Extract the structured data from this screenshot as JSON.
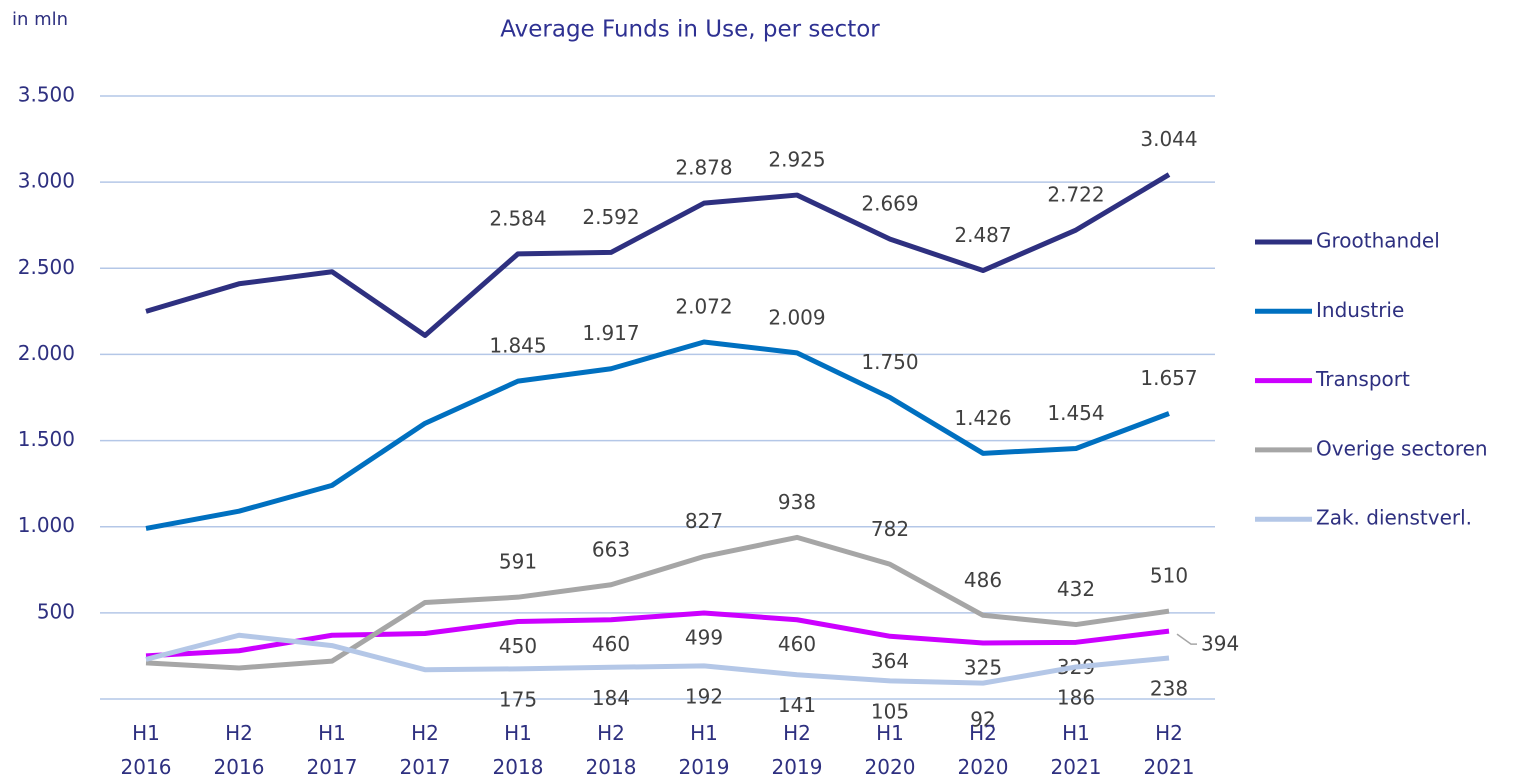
{
  "chart_data": {
    "type": "line",
    "title": "Average Funds in Use, per sector",
    "y_label": "in mln",
    "categories": [
      "H1 2016",
      "H2 2016",
      "H1 2017",
      "H2 2017",
      "H1 2018",
      "H2 2018",
      "H1 2019",
      "H2 2019",
      "H1 2020",
      "H2 2020",
      "H1 2021",
      "H2 2021"
    ],
    "ylim": [
      0,
      3500
    ],
    "yticks": [
      500,
      {
        "value": 1000,
        "label": "1.000"
      },
      {
        "value": 1500,
        "label": "1.500"
      },
      {
        "value": 2000,
        "label": "2.000"
      },
      {
        "value": 2500,
        "label": "2.500"
      },
      {
        "value": 3000,
        "label": "3.000"
      },
      {
        "value": 3500,
        "label": "3.500"
      }
    ],
    "grid": true,
    "legend": "right",
    "series": [
      {
        "name": "Groothandel",
        "color": "#2e3080",
        "values": [
          2250,
          2410,
          2480,
          2110,
          2584,
          2592,
          2878,
          2925,
          2669,
          2487,
          2722,
          3044
        ],
        "value_labels": [
          null,
          null,
          null,
          null,
          "2.584",
          "2.592",
          "2.878",
          "2.925",
          "2.669",
          "2.487",
          "2.722",
          "3.044"
        ]
      },
      {
        "name": "Industrie",
        "color": "#0070c0",
        "values": [
          990,
          1090,
          1240,
          1600,
          1845,
          1917,
          2072,
          2009,
          1750,
          1426,
          1454,
          1657
        ],
        "value_labels": [
          null,
          null,
          null,
          null,
          "1.845",
          "1.917",
          "2.072",
          "2.009",
          "1.750",
          "1.426",
          "1.454",
          "1.657"
        ]
      },
      {
        "name": "Transport",
        "color": "#cc00ff",
        "values": [
          250,
          280,
          370,
          380,
          450,
          460,
          499,
          460,
          364,
          325,
          329,
          394
        ],
        "value_labels": [
          null,
          null,
          null,
          null,
          "450",
          "460",
          "499",
          "460",
          "364",
          "325",
          "329",
          "394"
        ]
      },
      {
        "name": "Overige sectoren",
        "color": "#a6a6a6",
        "values": [
          210,
          180,
          220,
          560,
          591,
          663,
          827,
          938,
          782,
          486,
          432,
          510
        ],
        "value_labels": [
          null,
          null,
          null,
          null,
          "591",
          "663",
          "827",
          "938",
          "782",
          "486",
          "432",
          "510"
        ]
      },
      {
        "name": "Zak. dienstverl.",
        "color": "#b4c7e7",
        "values": [
          230,
          370,
          310,
          170,
          175,
          184,
          192,
          141,
          105,
          92,
          186,
          238
        ],
        "value_labels": [
          null,
          null,
          null,
          null,
          "175",
          "184",
          "192",
          "141",
          "105",
          "92",
          "186",
          "238"
        ]
      }
    ]
  }
}
